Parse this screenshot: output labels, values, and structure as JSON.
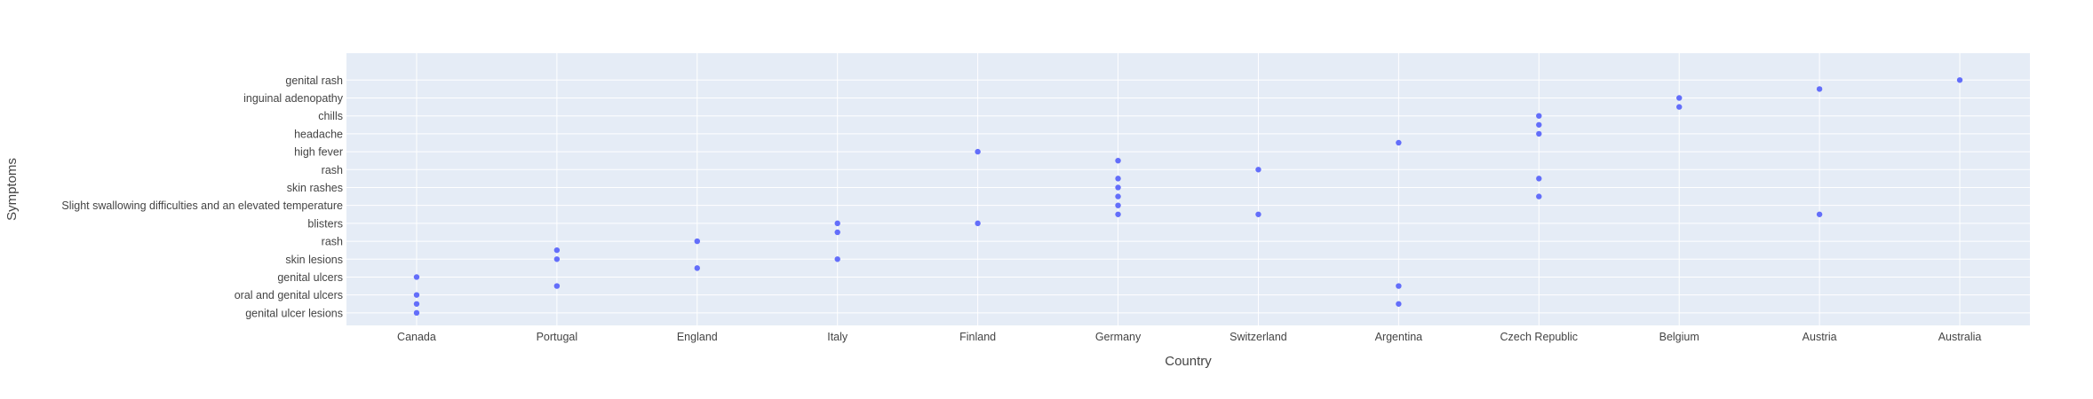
{
  "chart_data": {
    "type": "scatter",
    "title": "",
    "xlabel": "Country",
    "ylabel": "Symptoms",
    "grid": true,
    "legend": "none",
    "colors": {
      "plot_bg": "#E5ECF6",
      "grid": "#FFFFFF",
      "marker": "#636EFA",
      "text": "#444444"
    },
    "categories": [
      "Canada",
      "Portugal",
      "England",
      "Italy",
      "Finland",
      "Germany",
      "Switzerland",
      "Argentina",
      "Czech Republic",
      "Belgium",
      "Austria",
      "Australia"
    ],
    "y_ticks": [
      "genital ulcer lesions",
      "oral and genital ulcers",
      "genital ulcers",
      "skin lesions",
      "rash",
      "blisters",
      "Slight swallowing difficulties and an elevated temperature",
      "skin rashes",
      "rash",
      "high fever",
      "headache",
      "chills",
      "inguinal adenopathy",
      "genital rash"
    ],
    "y_range": [
      -0.7,
      14.5
    ],
    "points": [
      {
        "x": "Canada",
        "y": 0
      },
      {
        "x": "Canada",
        "y": 0.5
      },
      {
        "x": "Canada",
        "y": 1
      },
      {
        "x": "Canada",
        "y": 2
      },
      {
        "x": "Portugal",
        "y": 1.5
      },
      {
        "x": "Portugal",
        "y": 3
      },
      {
        "x": "Portugal",
        "y": 3.5
      },
      {
        "x": "England",
        "y": 2.5
      },
      {
        "x": "England",
        "y": 4
      },
      {
        "x": "Italy",
        "y": 3
      },
      {
        "x": "Italy",
        "y": 4.5
      },
      {
        "x": "Italy",
        "y": 5
      },
      {
        "x": "Finland",
        "y": 5
      },
      {
        "x": "Finland",
        "y": 9
      },
      {
        "x": "Germany",
        "y": 5.5
      },
      {
        "x": "Germany",
        "y": 6
      },
      {
        "x": "Germany",
        "y": 6.5
      },
      {
        "x": "Germany",
        "y": 7
      },
      {
        "x": "Germany",
        "y": 7.5
      },
      {
        "x": "Germany",
        "y": 8.5
      },
      {
        "x": "Switzerland",
        "y": 5.5
      },
      {
        "x": "Switzerland",
        "y": 8
      },
      {
        "x": "Argentina",
        "y": 0.5
      },
      {
        "x": "Argentina",
        "y": 1.5
      },
      {
        "x": "Argentina",
        "y": 9.5
      },
      {
        "x": "Czech Republic",
        "y": 6.5
      },
      {
        "x": "Czech Republic",
        "y": 7.5
      },
      {
        "x": "Czech Republic",
        "y": 10
      },
      {
        "x": "Czech Republic",
        "y": 10.5
      },
      {
        "x": "Czech Republic",
        "y": 11
      },
      {
        "x": "Belgium",
        "y": 11.5
      },
      {
        "x": "Belgium",
        "y": 12
      },
      {
        "x": "Austria",
        "y": 5.5
      },
      {
        "x": "Austria",
        "y": 12.5
      },
      {
        "x": "Australia",
        "y": 13
      }
    ]
  }
}
